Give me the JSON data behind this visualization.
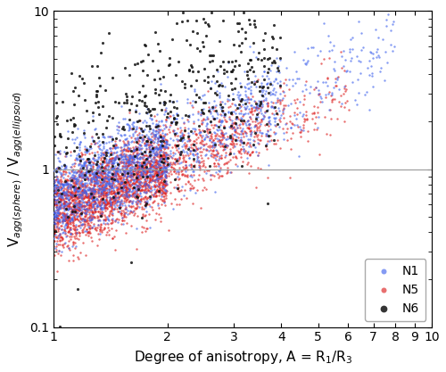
{
  "xlabel": "Degree of anisotropy, A = R$_1$/R$_3$",
  "ylabel": "V$_{agg(sphere)}$ / V$_{agg(ellipsoid)}$",
  "xmin": 1,
  "xmax": 10,
  "ymin": 0.1,
  "ymax": 10,
  "hline_y": 1.0,
  "hline_color": "#999999",
  "legend_labels": [
    "N1",
    "N5",
    "N6"
  ],
  "colors_N1": "#4466ee",
  "colors_N5": "#dd2222",
  "colors_N6": "#111111",
  "marker_size_N1": 3,
  "marker_size_N5": 3,
  "marker_size_N6": 5,
  "alpha_N1": 0.65,
  "alpha_N5": 0.65,
  "alpha_N6": 0.85,
  "N1_n": 2200,
  "N5_n": 3000,
  "N6_n": 500,
  "figsize": [
    5.0,
    4.17
  ],
  "dpi": 100
}
